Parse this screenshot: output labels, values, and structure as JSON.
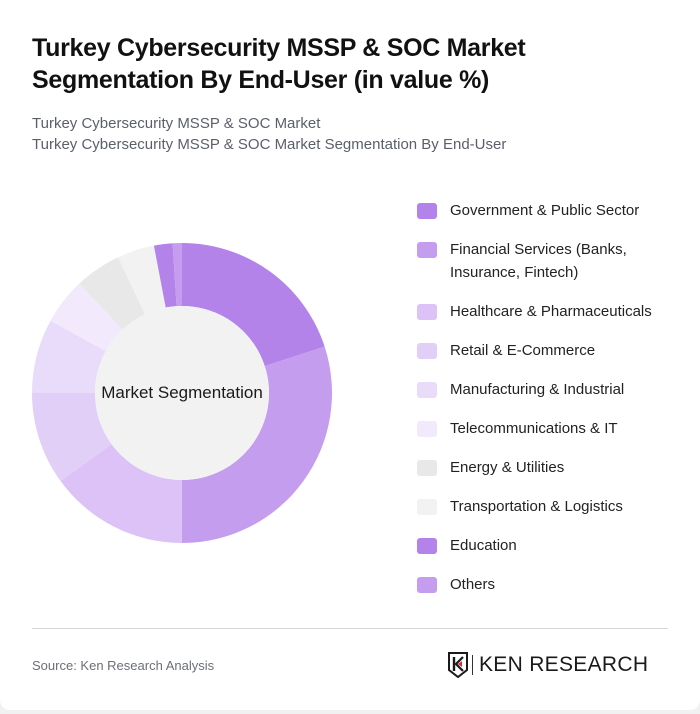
{
  "header": {
    "title": "Turkey Cybersecurity MSSP & SOC Market Segmentation By End-User (in value %)",
    "subtitle_line1": "Turkey Cybersecurity MSSP & SOC Market",
    "subtitle_line2": "Turkey Cybersecurity MSSP & SOC Market Segmentation By End-User"
  },
  "chart_data": {
    "type": "pie",
    "variant": "donut",
    "title": "Turkey Cybersecurity MSSP & SOC Market Segmentation By End-User (in value %)",
    "center_label": "Market Segmentation",
    "start_angle_deg": 0,
    "direction": "clockwise",
    "legend_position": "right",
    "categories": [
      "Government & Public Sector",
      "Financial Services (Banks, Insurance, Fintech)",
      "Healthcare & Pharmaceuticals",
      "Retail & E-Commerce",
      "Manufacturing & Industrial",
      "Telecommunications & IT",
      "Energy & Utilities",
      "Transportation & Logistics",
      "Education",
      "Others"
    ],
    "values": [
      20,
      30,
      15,
      10,
      8,
      5,
      5,
      4,
      2,
      1
    ],
    "colors": [
      "#b383ea",
      "#c59dee",
      "#dcc2f6",
      "#e2cff8",
      "#e9dcfa",
      "#f2eafc",
      "#e8e8e8",
      "#f2f2f2",
      "#b383ea",
      "#c59dee"
    ],
    "unit": "%"
  },
  "legend": {
    "items": [
      {
        "label": "Government & Public Sector",
        "color": "#b383ea"
      },
      {
        "label": "Financial Services (Banks, Insurance, Fintech)",
        "color": "#c59dee"
      },
      {
        "label": "Healthcare & Pharmaceuticals",
        "color": "#dcc2f6"
      },
      {
        "label": "Retail & E-Commerce",
        "color": "#e2cff8"
      },
      {
        "label": "Manufacturing & Industrial",
        "color": "#e9dcfa"
      },
      {
        "label": "Telecommunications & IT",
        "color": "#f2eafc"
      },
      {
        "label": "Energy & Utilities",
        "color": "#e8e8e8"
      },
      {
        "label": "Transportation & Logistics",
        "color": "#f2f2f2"
      },
      {
        "label": "Education",
        "color": "#b383ea"
      },
      {
        "label": "Others",
        "color": "#c59dee"
      }
    ]
  },
  "footer": {
    "source": "Source: Ken Research Analysis",
    "logo_text": "KEN RESEARCH"
  },
  "colors": {
    "inner_circle": "#f2f2f2",
    "logo_accent": "#d32f2f"
  }
}
